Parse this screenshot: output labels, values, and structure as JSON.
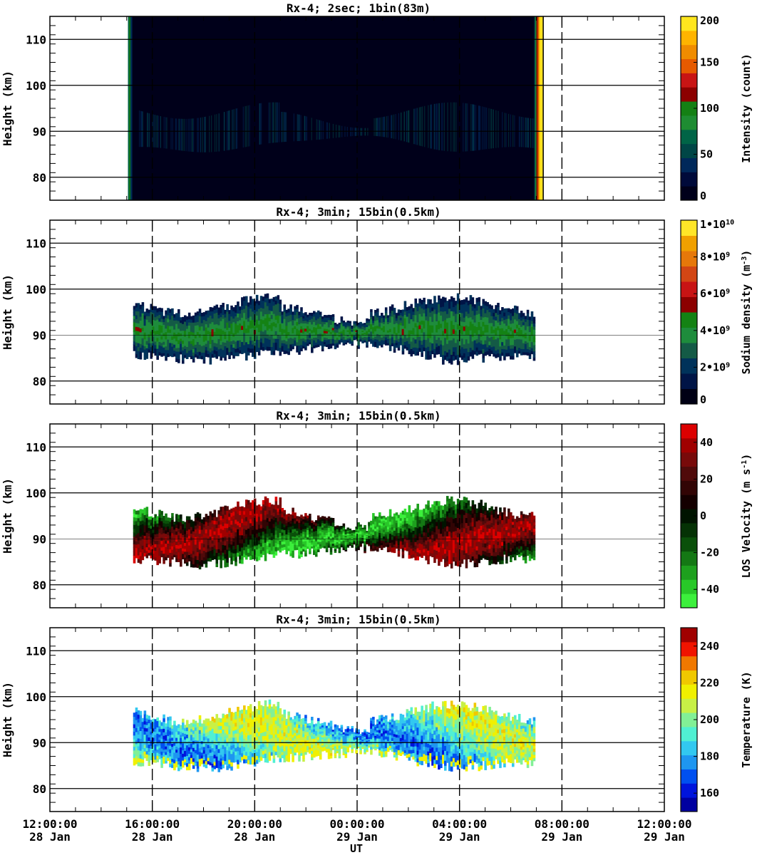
{
  "x_axis": {
    "label": "UT",
    "tick_times": [
      "12:00:00",
      "16:00:00",
      "20:00:00",
      "00:00:00",
      "04:00:00",
      "08:00:00",
      "12:00:00"
    ],
    "tick_dates": [
      "28 Jan",
      "28 Jan",
      "28 Jan",
      "29 Jan",
      "29 Jan",
      "29 Jan",
      "29 Jan"
    ],
    "range_hours": [
      0,
      24
    ],
    "tick_hours": [
      0,
      4,
      8,
      12,
      16,
      20,
      24
    ]
  },
  "chart_data": [
    {
      "type": "heatmap",
      "title": "Rx-4;  2sec; 1bin(83m)",
      "ylabel": "Height (km)",
      "ylim": [
        75,
        115
      ],
      "yticks": [
        "80",
        "90",
        "100",
        "110"
      ],
      "ytick_values": [
        80,
        90,
        100,
        110
      ],
      "data_span_hours": [
        3.05,
        19.25
      ],
      "colorbar": {
        "label": "Intensity (count)",
        "range": [
          0,
          200
        ],
        "tick_labels": [
          "0",
          "50",
          "100",
          "150",
          "200"
        ],
        "tick_values": [
          0,
          50,
          100,
          150,
          200
        ],
        "colors": [
          "#00001a",
          "#000a3a",
          "#00285a",
          "#004646",
          "#006446",
          "#1e8c32",
          "#148014",
          "#8c0000",
          "#c81414",
          "#e65a00",
          "#f08c00",
          "#ffb400",
          "#ffe61e"
        ]
      }
    },
    {
      "type": "heatmap",
      "title": "Rx-4; 3min; 15bin(0.5km)",
      "ylabel": "Height (km)",
      "ylim": [
        75,
        115
      ],
      "yticks": [
        "80",
        "90",
        "100",
        "110"
      ],
      "ytick_values": [
        80,
        90,
        100,
        110
      ],
      "data_span_hours": [
        3.25,
        18.95
      ],
      "colorbar": {
        "label": "Sodium density (m^-3)",
        "range": [
          0,
          10
        ],
        "tick_labels": [
          "0",
          "2•10^9",
          "4•10^9",
          "6•10^9",
          "8•10^9",
          "1•10^10"
        ],
        "tick_values": [
          0,
          2,
          4,
          6,
          8,
          10
        ],
        "colors": [
          "#000014",
          "#001446",
          "#00325a",
          "#145a46",
          "#1e8c3c",
          "#148214",
          "#8c0000",
          "#c81414",
          "#d24614",
          "#e6780a",
          "#f0a000",
          "#ffe628"
        ]
      }
    },
    {
      "type": "heatmap",
      "title": "Rx-4; 3min; 15bin(0.5km)",
      "ylabel": "Height (km)",
      "ylim": [
        75,
        115
      ],
      "yticks": [
        "80",
        "90",
        "100",
        "110"
      ],
      "ytick_values": [
        80,
        90,
        100,
        110
      ],
      "data_span_hours": [
        3.25,
        18.95
      ],
      "colorbar": {
        "label": "LOS Velocity (m s^-1)",
        "range": [
          -50,
          50
        ],
        "tick_labels": [
          "-40",
          "-20",
          "0",
          "20",
          "40"
        ],
        "tick_values": [
          -40,
          -20,
          0,
          20,
          40
        ],
        "colors": [
          "#3cf03c",
          "#28c828",
          "#1ea01e",
          "#147814",
          "#0a500a",
          "#053205",
          "#001400",
          "#140000",
          "#320505",
          "#500a0a",
          "#780a0a",
          "#a00000",
          "#dc0000"
        ]
      }
    },
    {
      "type": "heatmap",
      "title": "Rx-4; 3min; 15bin(0.5km)",
      "ylabel": "Height (km)",
      "ylim": [
        75,
        115
      ],
      "yticks": [
        "80",
        "90",
        "100",
        "110"
      ],
      "ytick_values": [
        80,
        90,
        100,
        110
      ],
      "data_span_hours": [
        3.25,
        18.95
      ],
      "colorbar": {
        "label": "Temperature (K)",
        "range": [
          150,
          250
        ],
        "tick_labels": [
          "160",
          "180",
          "200",
          "220",
          "240"
        ],
        "tick_values": [
          160,
          180,
          200,
          220,
          240
        ],
        "colors": [
          "#0000a0",
          "#0014dc",
          "#0050f0",
          "#1e96f0",
          "#32c8f0",
          "#50f0d2",
          "#82f096",
          "#c8f046",
          "#f0f000",
          "#f0c800",
          "#f07800",
          "#f01400",
          "#a00000"
        ]
      }
    }
  ]
}
